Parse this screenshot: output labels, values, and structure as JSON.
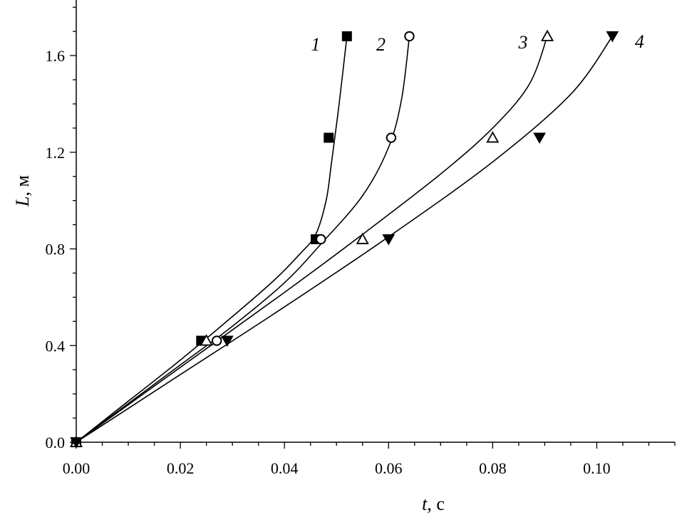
{
  "chart_data": {
    "type": "line",
    "xlabel": {
      "var": "t",
      "unit": ", с"
    },
    "ylabel": {
      "var": "L",
      "unit": ", м"
    },
    "xlim": [
      0,
      0.115
    ],
    "ylim": [
      0,
      1.83
    ],
    "grid": false,
    "x_ticks": [
      {
        "value": 0.0,
        "label": "0.00"
      },
      {
        "value": 0.02,
        "label": "0.02"
      },
      {
        "value": 0.04,
        "label": "0.04"
      },
      {
        "value": 0.06,
        "label": "0.06"
      },
      {
        "value": 0.08,
        "label": "0.08"
      },
      {
        "value": 0.1,
        "label": "0.10"
      }
    ],
    "y_ticks": [
      {
        "value": 0.0,
        "label": "0.0"
      },
      {
        "value": 0.4,
        "label": "0.4"
      },
      {
        "value": 0.8,
        "label": "0.8"
      },
      {
        "value": 1.2,
        "label": "1.2"
      },
      {
        "value": 1.6,
        "label": "1.6"
      }
    ],
    "series": [
      {
        "label": "1",
        "marker": "square-filled",
        "points": [
          [
            0.0,
            0.0
          ],
          [
            0.024,
            0.42
          ],
          [
            0.046,
            0.84
          ],
          [
            0.0485,
            1.26
          ],
          [
            0.052,
            1.68
          ]
        ],
        "curve": [
          [
            0.0,
            0.0
          ],
          [
            0.01,
            0.17
          ],
          [
            0.02,
            0.34
          ],
          [
            0.03,
            0.52
          ],
          [
            0.038,
            0.67
          ],
          [
            0.043,
            0.78
          ],
          [
            0.046,
            0.86
          ],
          [
            0.048,
            1.0
          ],
          [
            0.049,
            1.15
          ],
          [
            0.0505,
            1.4
          ],
          [
            0.052,
            1.68
          ]
        ]
      },
      {
        "label": "2",
        "marker": "circle-open",
        "points": [
          [
            0.0,
            0.0
          ],
          [
            0.027,
            0.42
          ],
          [
            0.047,
            0.84
          ],
          [
            0.0605,
            1.26
          ],
          [
            0.064,
            1.68
          ]
        ],
        "curve": [
          [
            0.0,
            0.0
          ],
          [
            0.01,
            0.16
          ],
          [
            0.02,
            0.32
          ],
          [
            0.03,
            0.48
          ],
          [
            0.04,
            0.66
          ],
          [
            0.047,
            0.82
          ],
          [
            0.055,
            1.02
          ],
          [
            0.06,
            1.22
          ],
          [
            0.0625,
            1.42
          ],
          [
            0.064,
            1.68
          ]
        ]
      },
      {
        "label": "3",
        "marker": "triangle-up-open",
        "points": [
          [
            0.0,
            0.0
          ],
          [
            0.025,
            0.42
          ],
          [
            0.055,
            0.84
          ],
          [
            0.08,
            1.26
          ],
          [
            0.0905,
            1.68
          ]
        ],
        "curve": [
          [
            0.0,
            0.0
          ],
          [
            0.02,
            0.31
          ],
          [
            0.04,
            0.62
          ],
          [
            0.055,
            0.86
          ],
          [
            0.07,
            1.11
          ],
          [
            0.08,
            1.3
          ],
          [
            0.087,
            1.48
          ],
          [
            0.0905,
            1.68
          ]
        ]
      },
      {
        "label": "4",
        "marker": "triangle-down-filled",
        "points": [
          [
            0.0,
            0.0
          ],
          [
            0.029,
            0.42
          ],
          [
            0.06,
            0.84
          ],
          [
            0.089,
            1.26
          ],
          [
            0.103,
            1.68
          ]
        ],
        "curve": [
          [
            0.0,
            0.0
          ],
          [
            0.02,
            0.28
          ],
          [
            0.04,
            0.56
          ],
          [
            0.06,
            0.85
          ],
          [
            0.08,
            1.16
          ],
          [
            0.095,
            1.44
          ],
          [
            0.103,
            1.68
          ]
        ]
      }
    ],
    "series_labels": [
      {
        "text": "1",
        "series": "1"
      },
      {
        "text": "2",
        "series": "2"
      },
      {
        "text": "3",
        "series": "3"
      },
      {
        "text": "4",
        "series": "4"
      }
    ]
  }
}
